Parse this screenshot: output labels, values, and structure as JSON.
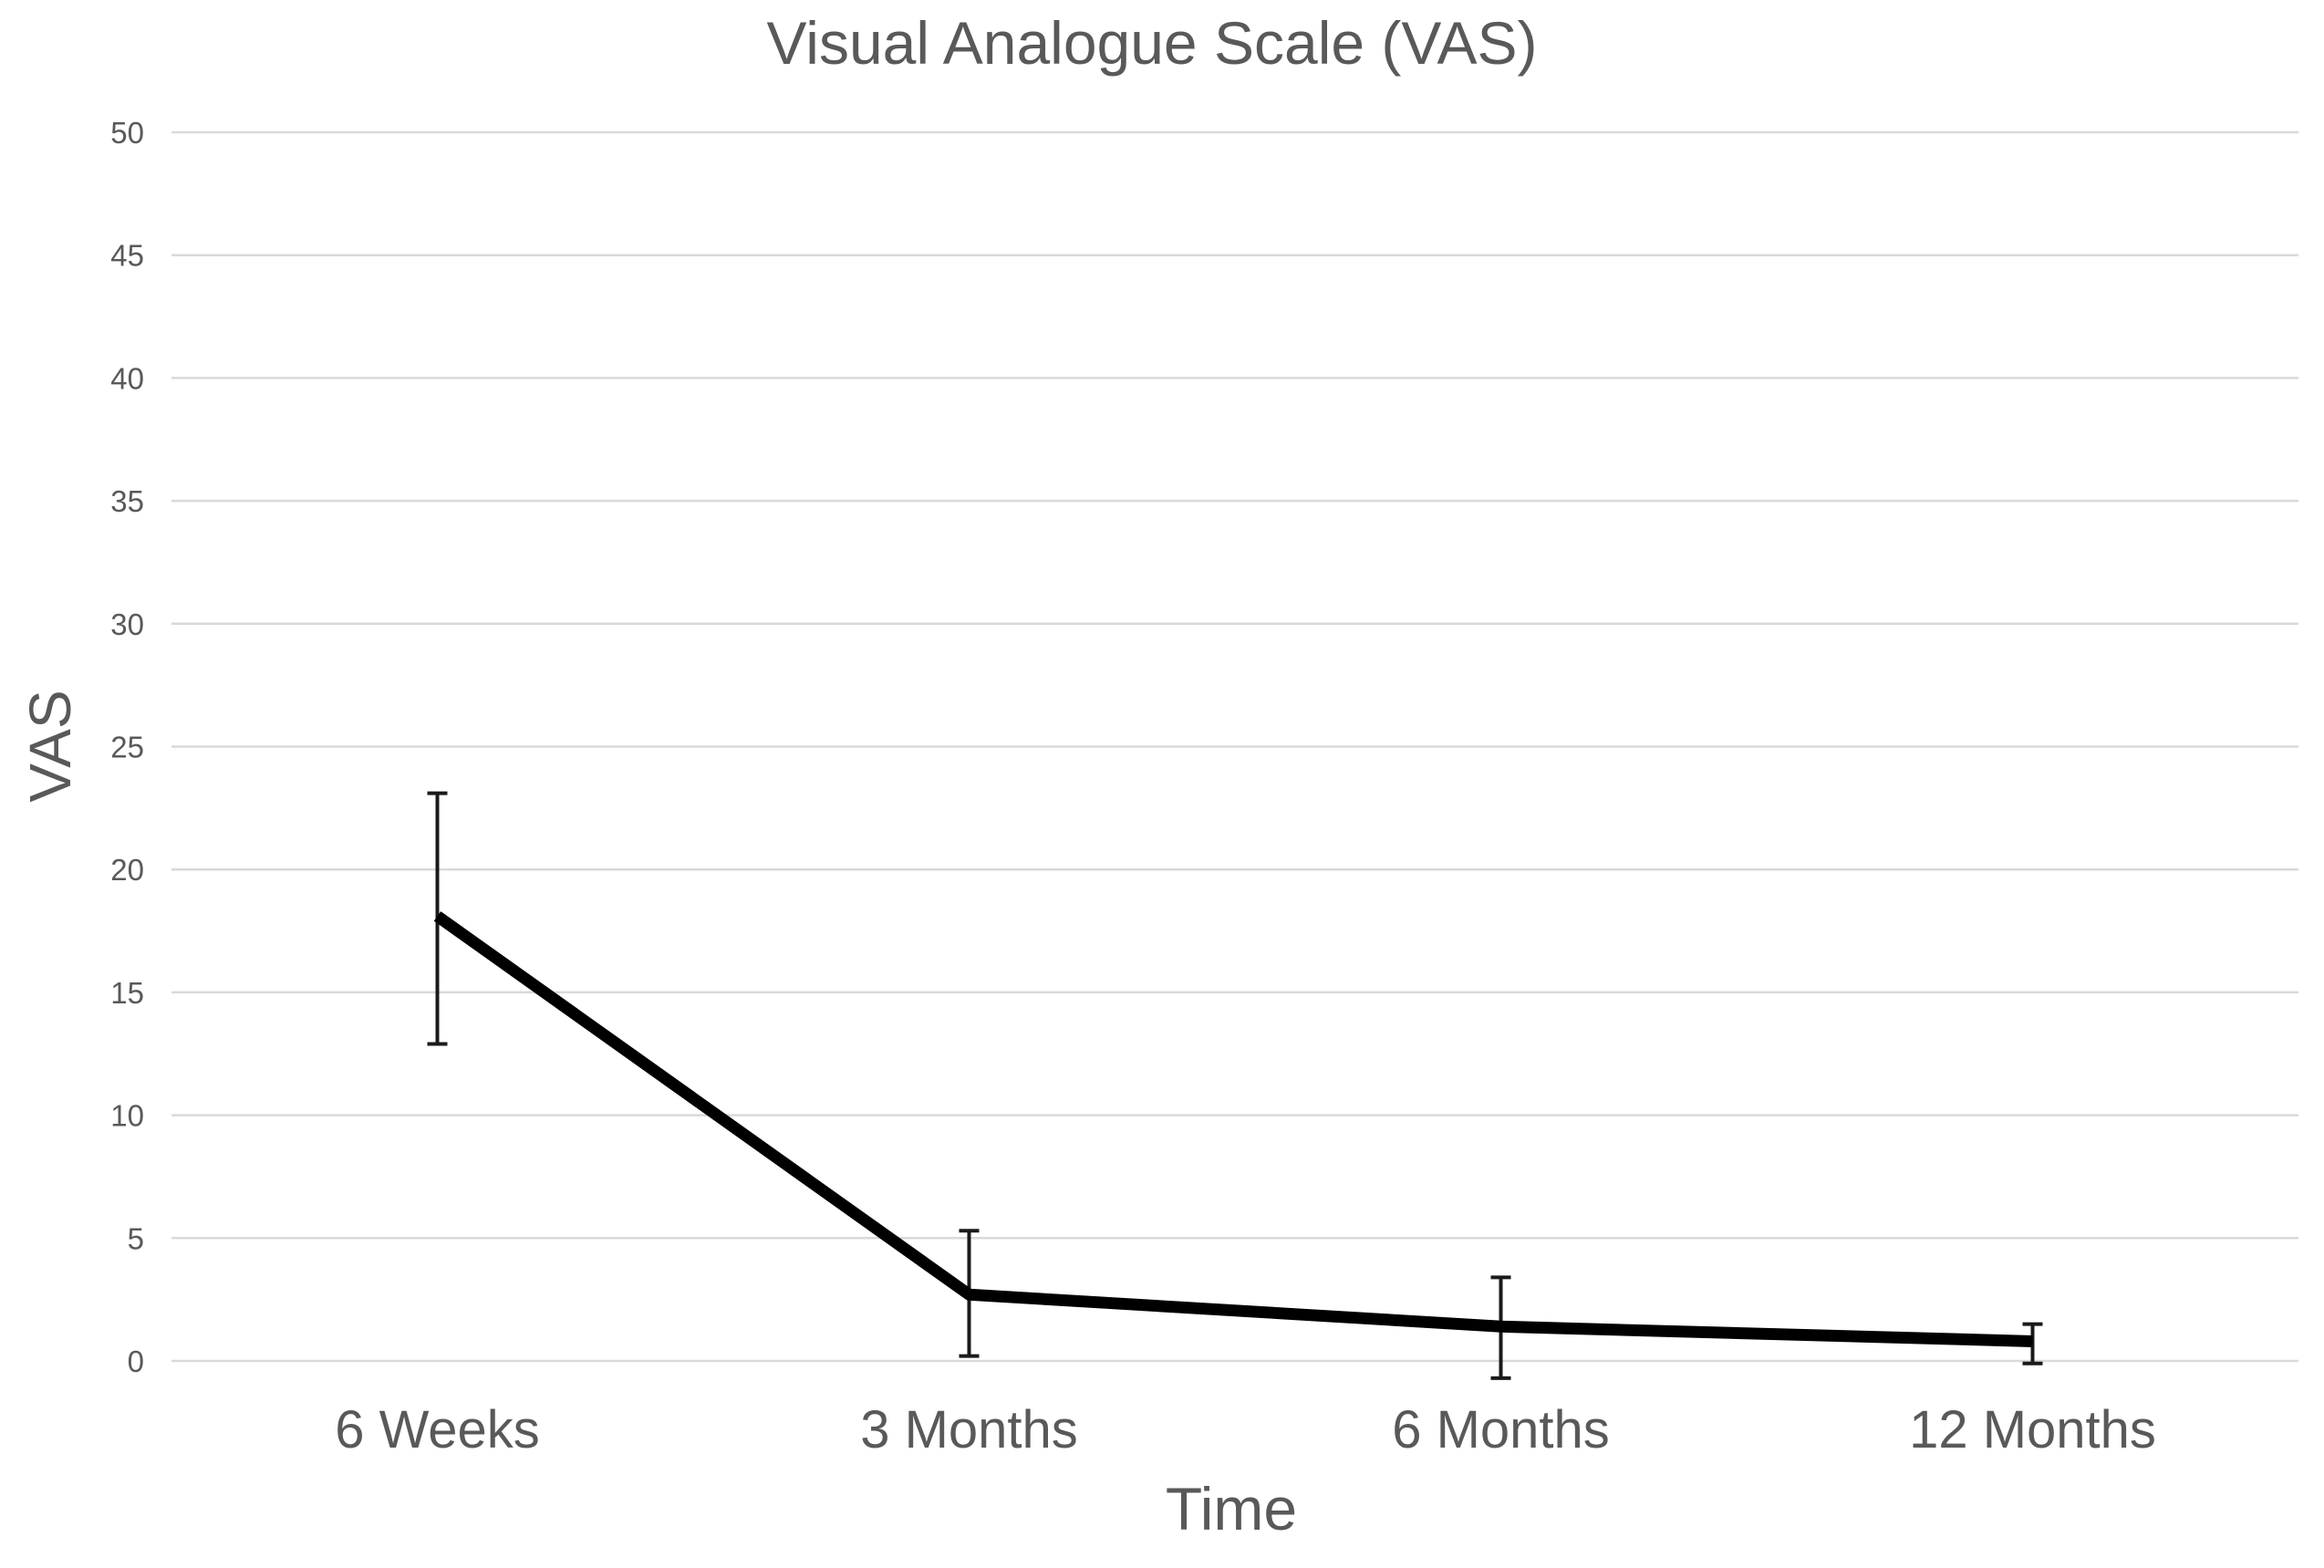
{
  "chart_data": {
    "type": "line",
    "title": "Visual Analogue Scale (VAS)",
    "xlabel": "Time",
    "ylabel": "VAS",
    "categories": [
      "6 Weeks",
      "3 Months",
      "6 Months",
      "12 Months"
    ],
    "yticks": [
      0,
      5,
      10,
      15,
      20,
      25,
      30,
      35,
      40,
      45,
      50
    ],
    "ylim": [
      0,
      50
    ],
    "series": [
      {
        "name": "VAS",
        "values": [
          18.1,
          2.7,
          1.4,
          0.8
        ],
        "error_upper": [
          23.1,
          5.3,
          3.4,
          1.5
        ],
        "error_lower": [
          12.9,
          0.2,
          -0.7,
          -0.1
        ]
      }
    ],
    "grid": "horizontal",
    "legend": "none",
    "colors": {
      "line": "#000000",
      "error_bar": "#1a1a1a",
      "grid": "#d9d9d9",
      "text": "#595959",
      "background": "#ffffff"
    }
  }
}
